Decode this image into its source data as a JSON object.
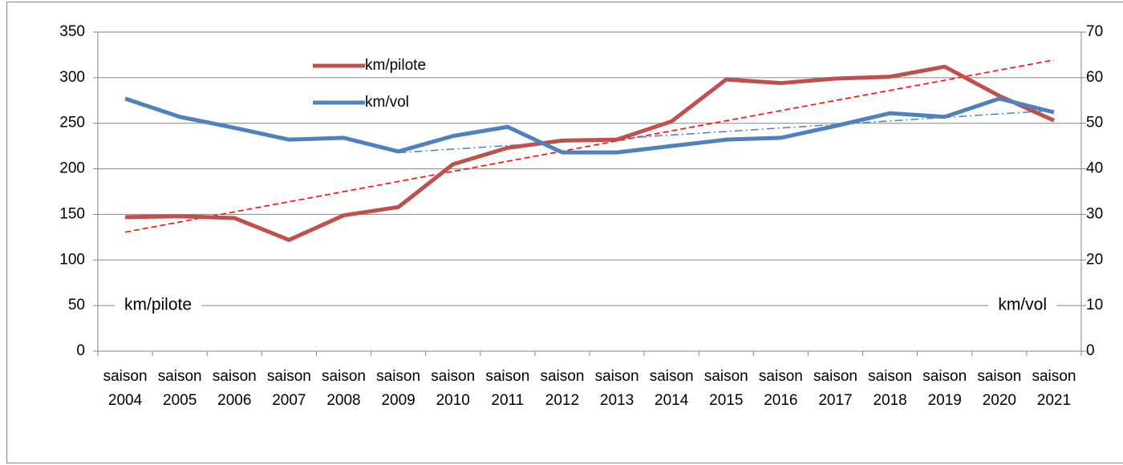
{
  "chart_data": {
    "type": "line",
    "categories": [
      "saison 2004",
      "saison 2005",
      "saison 2006",
      "saison 2007",
      "saison 2008",
      "saison 2009",
      "saison 2010",
      "saison 2011",
      "saison 2012",
      "saison 2013",
      "saison 2014",
      "saison 2015",
      "saison 2016",
      "saison 2017",
      "saison 2018",
      "saison 2019",
      "saison 2020",
      "saison 2021"
    ],
    "series": [
      {
        "name": "km/pilote",
        "color": "#c0504d",
        "trend_color": "#ff0000",
        "trend_from": 0,
        "values": [
          147,
          148,
          146,
          122,
          149,
          158,
          205,
          223,
          231,
          232,
          252,
          298,
          294,
          299,
          301,
          312,
          280,
          253
        ]
      },
      {
        "name": "km/vol",
        "color": "#4f81bd",
        "trend_color": "#4f81bd",
        "trend_from": 5,
        "axis": "y2",
        "values": [
          55.4,
          51.4,
          49,
          46.4,
          46.8,
          43.8,
          47.2,
          49.2,
          43.6,
          43.6,
          45,
          46.4,
          46.8,
          49.4,
          52.2,
          51.4,
          55.4,
          52.4
        ]
      }
    ],
    "annotations": [
      {
        "text": "km/pilote",
        "color": "#ff0000"
      },
      {
        "text": "km/vol",
        "color": "#1f497d"
      }
    ],
    "ylim": [
      0,
      350
    ],
    "yticks": [
      0,
      50,
      100,
      150,
      200,
      250,
      300,
      350
    ],
    "y2lim": [
      0,
      70
    ],
    "y2ticks": [
      0,
      10,
      20,
      30,
      40,
      50,
      60,
      70
    ],
    "grid": true
  }
}
